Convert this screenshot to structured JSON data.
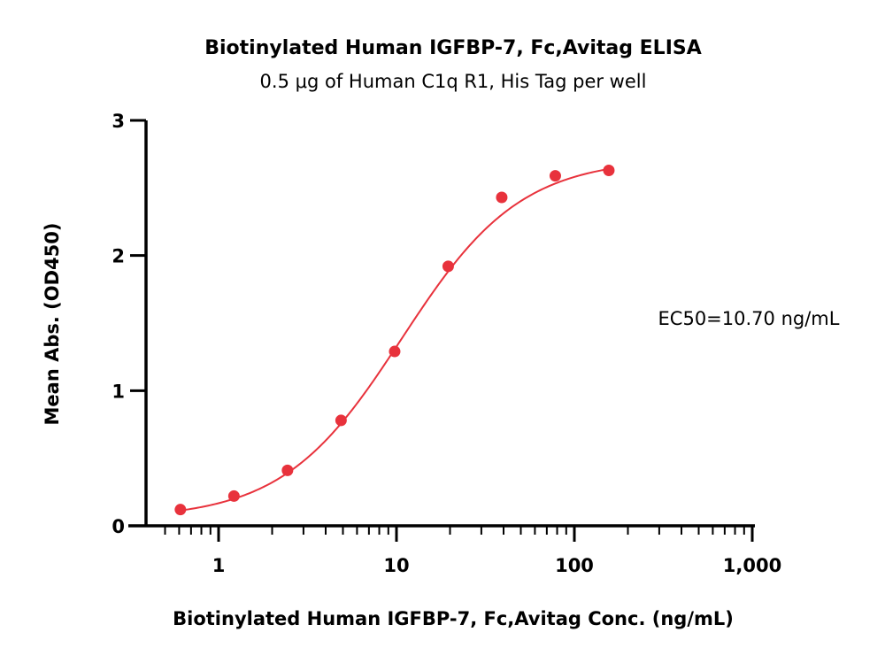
{
  "chart_data": {
    "type": "scatter",
    "title": "Biotinylated Human IGFBP-7, Fc,Avitag ELISA",
    "subtitle": "0.5 μg of Human C1q R1, His Tag per well",
    "xlabel": "Biotinylated Human IGFBP-7, Fc,Avitag Conc. (ng/mL)",
    "ylabel": "Mean Abs. (OD450)",
    "x_scale": "log",
    "xlim": [
      0.5,
      1000
    ],
    "ylim": [
      0,
      3
    ],
    "x_ticks": [
      1,
      10,
      100,
      1000
    ],
    "x_tick_labels": [
      "1",
      "10",
      "100",
      "1,000"
    ],
    "y_ticks": [
      0,
      1,
      2,
      3
    ],
    "y_tick_labels": [
      "0",
      "1",
      "2",
      "3"
    ],
    "grid": false,
    "series": [
      {
        "color": "#e8323c",
        "x": [
          0.61,
          1.22,
          2.44,
          4.88,
          9.77,
          19.53,
          39.06,
          78.13,
          156.25
        ],
        "y": [
          0.12,
          0.22,
          0.41,
          0.78,
          1.29,
          1.92,
          2.43,
          2.59,
          2.63
        ],
        "fit": {
          "model": "4PL",
          "bottom": 0.05,
          "top": 2.72,
          "ec50": 10.7,
          "hill": 1.3
        }
      }
    ],
    "annotation": "EC50=10.70 ng/mL"
  }
}
